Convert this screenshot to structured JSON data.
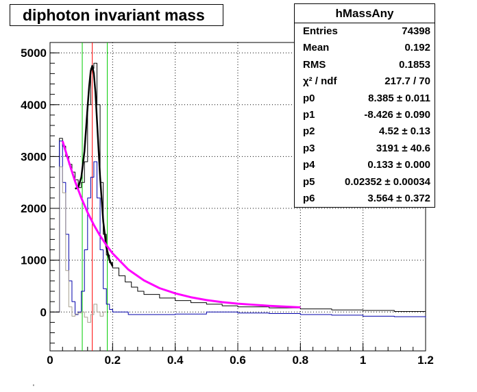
{
  "title": "diphoton invariant mass",
  "stats": {
    "name": "hMassAny",
    "rows": [
      {
        "key": "Entries",
        "value": "74398"
      },
      {
        "key": "Mean",
        "value": "0.192"
      },
      {
        "key": "RMS",
        "value": "0.1853"
      },
      {
        "key": "χ² / ndf",
        "value": "217.7 / 70"
      },
      {
        "key": "p0",
        "value": "8.385 ± 0.011"
      },
      {
        "key": "p1",
        "value": "-8.426 ± 0.090"
      },
      {
        "key": "p2",
        "value": "4.52 ± 0.13"
      },
      {
        "key": "p3",
        "value": "3191 ± 40.6"
      },
      {
        "key": "p4",
        "value": "0.133 ± 0.000"
      },
      {
        "key": "p5",
        "value": "0.02352 ± 0.00034"
      },
      {
        "key": "p6",
        "value": "3.564 ± 0.372"
      }
    ]
  },
  "footnote": "'",
  "chart_data": {
    "type": "line",
    "title": "diphoton invariant mass",
    "xlabel": "",
    "ylabel": "",
    "xlim": [
      0,
      1.2
    ],
    "ylim": [
      -750,
      5200
    ],
    "grid": true,
    "x_ticks": [
      0,
      0.2,
      0.4,
      0.6,
      0.8,
      1,
      1.2
    ],
    "x_tick_labels": [
      "0",
      "0.2",
      "0.4",
      "0.6",
      "0.8",
      "1",
      "1.2"
    ],
    "y_ticks": [
      0,
      1000,
      2000,
      3000,
      4000,
      5000
    ],
    "y_tick_labels": [
      "0",
      "1000",
      "2000",
      "3000",
      "4000",
      "5000"
    ],
    "vertical_lines": [
      {
        "x": 0.103,
        "color": "#00cc00"
      },
      {
        "x": 0.135,
        "color": "#ff0000"
      },
      {
        "x": 0.183,
        "color": "#00cc00"
      }
    ],
    "series": [
      {
        "color": "#000000",
        "style": "step",
        "x": [
          0.02,
          0.03,
          0.04,
          0.05,
          0.06,
          0.07,
          0.08,
          0.09,
          0.1,
          0.11,
          0.12,
          0.13,
          0.14,
          0.15,
          0.16,
          0.17,
          0.18,
          0.19,
          0.2,
          0.22,
          0.24,
          0.26,
          0.28,
          0.3,
          0.35,
          0.4,
          0.45,
          0.5,
          0.55,
          0.6,
          0.7,
          0.8,
          0.9,
          1.0,
          1.1,
          1.2
        ],
        "y": [
          0,
          3350,
          3200,
          3000,
          2850,
          2700,
          2550,
          2400,
          2500,
          2900,
          4000,
          4700,
          4800,
          4000,
          2500,
          1500,
          1100,
          950,
          850,
          700,
          580,
          480,
          400,
          340,
          270,
          220,
          180,
          150,
          120,
          100,
          80,
          60,
          40,
          30,
          10,
          0
        ]
      },
      {
        "color": "#0000aa",
        "style": "step",
        "x": [
          0.02,
          0.03,
          0.04,
          0.05,
          0.06,
          0.07,
          0.08,
          0.09,
          0.1,
          0.11,
          0.12,
          0.13,
          0.14,
          0.15,
          0.16,
          0.17,
          0.18,
          0.19,
          0.2,
          0.25,
          0.3,
          0.4,
          0.5,
          0.6,
          0.7,
          0.8,
          0.9,
          1.0,
          1.1,
          1.2
        ],
        "y": [
          0,
          3300,
          2500,
          1500,
          600,
          200,
          -50,
          0,
          400,
          1200,
          2200,
          2600,
          2900,
          2200,
          1200,
          450,
          150,
          50,
          0,
          -50,
          -50,
          -40,
          0,
          -20,
          -30,
          -50,
          -60,
          -80,
          -90,
          -110
        ]
      },
      {
        "color": "#a8a090",
        "style": "step",
        "x": [
          0.02,
          0.03,
          0.04,
          0.05,
          0.06,
          0.07,
          0.08,
          0.09,
          0.1,
          0.11,
          0.12,
          0.13,
          0.14,
          0.15,
          0.16,
          0.17,
          0.18
        ],
        "y": [
          0,
          2800,
          2300,
          800,
          100,
          -80,
          -40,
          -20,
          0,
          -100,
          -200,
          -50,
          150,
          0,
          -80,
          0,
          0
        ]
      },
      {
        "color": "#000000",
        "style": "smooth",
        "width": 2.5,
        "x": [
          0.08,
          0.09,
          0.1,
          0.11,
          0.12,
          0.125,
          0.13,
          0.135,
          0.14,
          0.145,
          0.15,
          0.16,
          0.17,
          0.18,
          0.19,
          0.2
        ],
        "y": [
          2380,
          2400,
          2600,
          3100,
          3950,
          4350,
          4650,
          4750,
          4600,
          4250,
          3700,
          2600,
          1750,
          1250,
          1000,
          880
        ]
      },
      {
        "color": "#ff00ff",
        "style": "smooth",
        "width": 3,
        "x": [
          0.04,
          0.06,
          0.08,
          0.1,
          0.12,
          0.14,
          0.16,
          0.18,
          0.2,
          0.25,
          0.3,
          0.35,
          0.4,
          0.45,
          0.5,
          0.55,
          0.6,
          0.65,
          0.7,
          0.75,
          0.8
        ],
        "y": [
          3300,
          2900,
          2520,
          2200,
          1920,
          1680,
          1470,
          1290,
          1130,
          820,
          610,
          460,
          360,
          285,
          230,
          190,
          160,
          140,
          120,
          105,
          90
        ]
      }
    ]
  }
}
